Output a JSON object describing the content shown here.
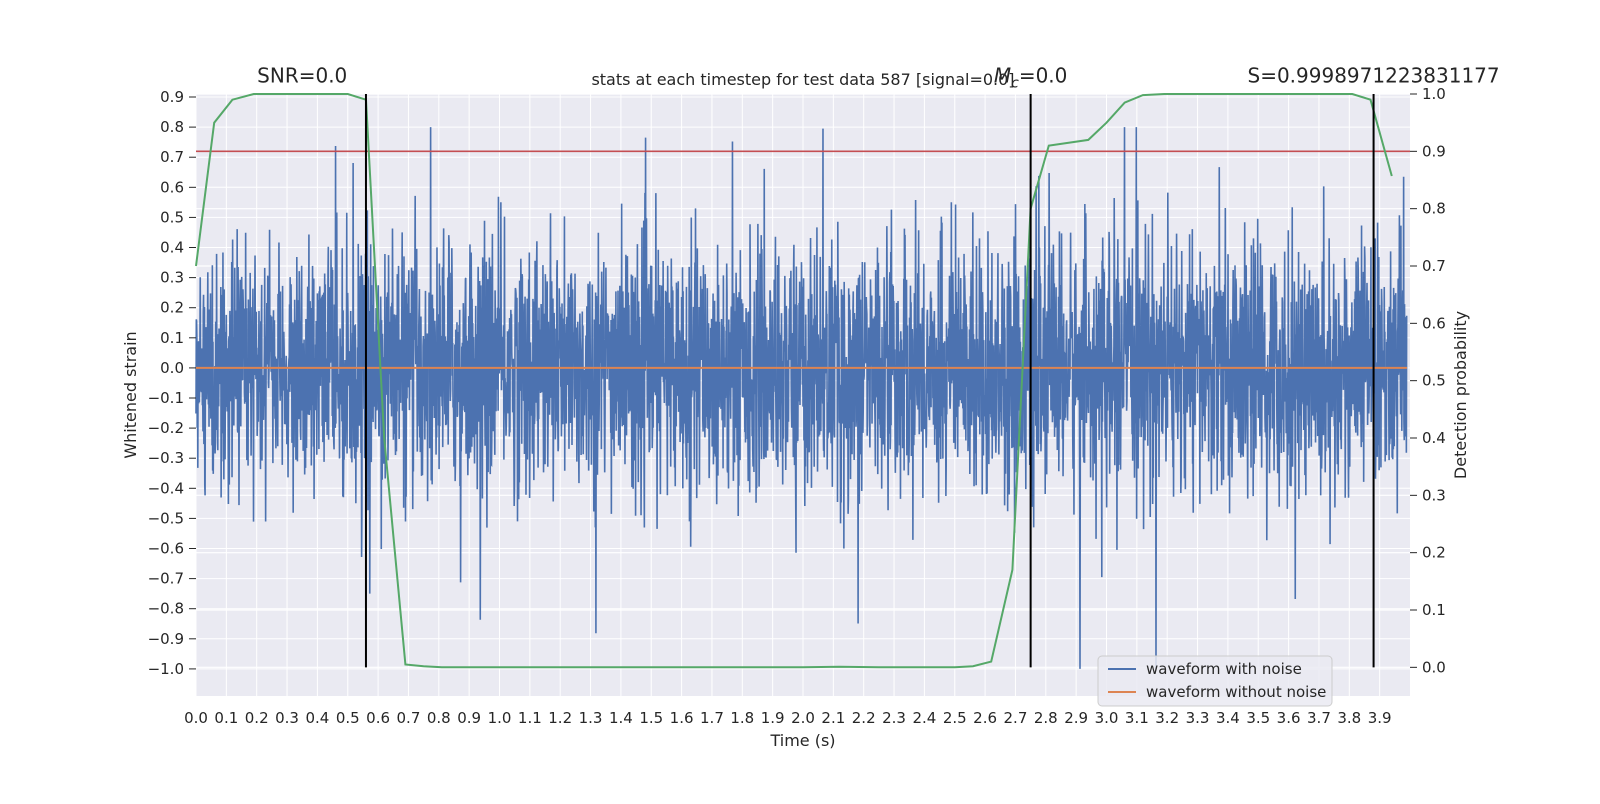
{
  "chart_data": {
    "type": "line",
    "title": "stats at each timestep for test data 587 [signal=0.0]",
    "xlabel": "Time (s)",
    "ylabel": "Whitened strain",
    "y2label": "Detection probability",
    "xlim": [
      0.0,
      4.0
    ],
    "ylim": [
      -1.09,
      0.91
    ],
    "y2lim": [
      -0.05,
      1.0
    ],
    "x_ticks": [
      "0.0",
      "0.1",
      "0.2",
      "0.3",
      "0.4",
      "0.5",
      "0.6",
      "0.7",
      "0.8",
      "0.9",
      "1.0",
      "1.1",
      "1.2",
      "1.3",
      "1.4",
      "1.5",
      "1.6",
      "1.7",
      "1.8",
      "1.9",
      "2.0",
      "2.1",
      "2.2",
      "2.3",
      "2.4",
      "2.5",
      "2.6",
      "2.7",
      "2.8",
      "2.9",
      "3.0",
      "3.1",
      "3.2",
      "3.3",
      "3.4",
      "3.5",
      "3.6",
      "3.7",
      "3.8",
      "3.9"
    ],
    "y_ticks": [
      "0.9",
      "0.8",
      "0.7",
      "0.6",
      "0.5",
      "0.4",
      "0.3",
      "0.2",
      "0.1",
      "0.0",
      "−0.1",
      "−0.2",
      "−0.3",
      "−0.4",
      "−0.5",
      "−0.6",
      "−0.7",
      "−0.8",
      "−0.9",
      "−1.0"
    ],
    "y2_ticks": [
      "0.0",
      "0.1",
      "0.2",
      "0.3",
      "0.4",
      "0.5",
      "0.6",
      "0.7",
      "0.8",
      "0.9",
      "1.0"
    ],
    "grid": true,
    "background": "#eaeaf2",
    "legend_position": "lower-right",
    "series": [
      {
        "name": "waveform with noise",
        "color": "#4c72b0",
        "kind": "noise",
        "samples": 4000,
        "seed": 587,
        "std": 0.2,
        "min": -1.0,
        "max": 0.8
      },
      {
        "name": "waveform without noise",
        "color": "#dd8452",
        "x": [
          0.0,
          3.99
        ],
        "y": [
          0.0,
          0.0
        ]
      },
      {
        "color": "#55a868",
        "axis": "right",
        "x": [
          0.0,
          0.06,
          0.12,
          0.19,
          0.25,
          0.31,
          0.37,
          0.44,
          0.5,
          0.56,
          0.62,
          0.69,
          0.75,
          0.81,
          0.87,
          0.94,
          1.0,
          1.25,
          1.5,
          1.75,
          2.0,
          2.12,
          2.25,
          2.5,
          2.56,
          2.62,
          2.69,
          2.75,
          2.81,
          2.94,
          3.0,
          3.06,
          3.12,
          3.19,
          3.5,
          3.81,
          3.87,
          3.94
        ],
        "y": [
          0.7,
          0.95,
          0.99,
          1.0,
          1.0,
          1.0,
          1.0,
          1.0,
          1.0,
          0.99,
          0.4,
          0.005,
          0.002,
          0.0,
          0.0,
          0.0,
          0.0,
          0.0,
          0.0,
          0.0,
          0.0,
          0.001,
          0.0,
          0.0,
          0.002,
          0.01,
          0.17,
          0.8,
          0.91,
          0.92,
          0.95,
          0.985,
          0.998,
          1.0,
          1.0,
          1.0,
          0.99,
          0.857
        ]
      }
    ],
    "threshold": {
      "y2": 0.9,
      "color": "#c44e52"
    },
    "vlines": [
      0.56,
      2.75,
      3.88
    ],
    "annotations": [
      {
        "text": "SNR=0.0",
        "x": 0.35
      },
      {
        "text": "M",
        "sub": "c",
        "suffix": "=0.0",
        "x": 2.75
      },
      {
        "text": "S=0.9998971223831177",
        "x": 3.88
      }
    ]
  }
}
